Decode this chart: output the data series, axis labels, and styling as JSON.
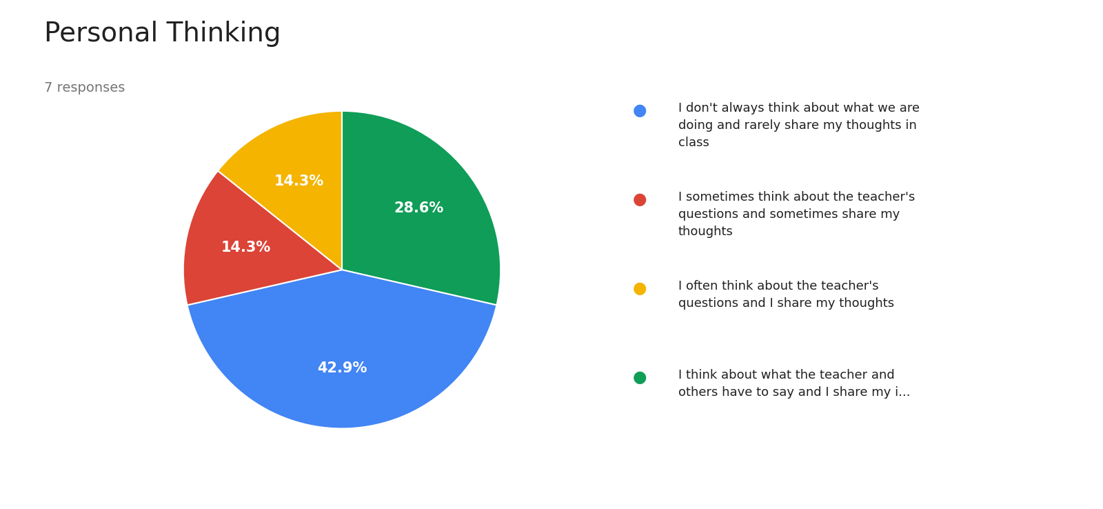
{
  "title": "Personal Thinking",
  "subtitle": "7 responses",
  "title_fontsize": 28,
  "subtitle_fontsize": 14,
  "title_color": "#212121",
  "subtitle_color": "#757575",
  "background_color": "#ffffff",
  "slices": [
    28.6,
    42.9,
    14.3,
    14.3
  ],
  "colors": [
    "#0F9D58",
    "#4285F4",
    "#DB4437",
    "#F4B400"
  ],
  "labels": [
    "28.6%",
    "42.9%",
    "14.3%",
    "14.3%"
  ],
  "legend_labels_line1": [
    "I don't always think about what we are",
    "I sometimes think about the teacher's",
    "I often think about the teacher's",
    "I think about what the teacher and"
  ],
  "legend_labels_line2": [
    "doing and rarely share my thoughts in",
    "questions and sometimes share my",
    "questions and I share my thoughts",
    "others have to say and I share my i..."
  ],
  "legend_labels_line3": [
    "class",
    "thoughts",
    "",
    ""
  ],
  "legend_colors": [
    "#4285F4",
    "#DB4437",
    "#F4B400",
    "#0F9D58"
  ],
  "startangle": 90,
  "pct_fontsize": 15,
  "pct_color": "#ffffff",
  "legend_fontsize": 13,
  "counterclock": false
}
